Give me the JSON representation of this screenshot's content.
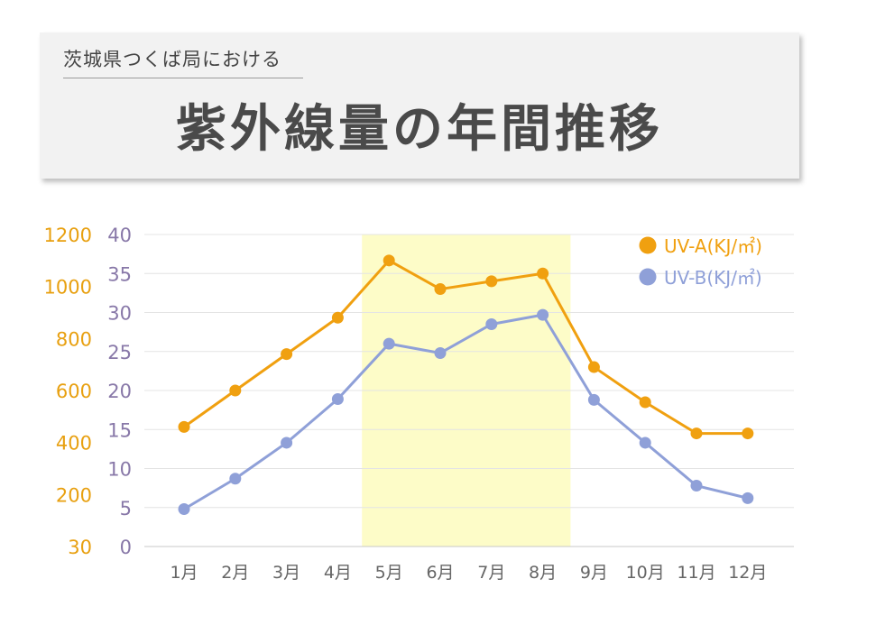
{
  "header": {
    "subtitle": "茨城県つくば局における",
    "title": "紫外線量の年間推移"
  },
  "colors": {
    "uva": "#f0a010",
    "uvb": "#8fa0d8",
    "axis_left": "#e8a010",
    "axis_right": "#8878a8",
    "highlight": "#fdfcc8"
  },
  "chart_data": {
    "type": "line",
    "categories": [
      "1月",
      "2月",
      "3月",
      "4月",
      "5月",
      "6月",
      "7月",
      "8月",
      "9月",
      "10月",
      "11月",
      "12月"
    ],
    "highlight_range": [
      "5月",
      "9月"
    ],
    "series": [
      {
        "name": "UV-A(KJ/㎡)",
        "axis": "left",
        "values": [
          460,
          600,
          740,
          880,
          1100,
          990,
          1020,
          1050,
          690,
          555,
          435,
          435
        ]
      },
      {
        "name": "UV-B(KJ/㎡)",
        "axis": "right",
        "values": [
          4.8,
          8.7,
          13.3,
          18.9,
          26,
          24.8,
          28.5,
          29.7,
          18.8,
          13.3,
          7.8,
          6.2
        ]
      }
    ],
    "left_axis": {
      "ticks": [
        "30",
        "200",
        "400",
        "600",
        "800",
        "1000",
        "1200"
      ]
    },
    "right_axis": {
      "ticks": [
        "0",
        "5",
        "10",
        "15",
        "20",
        "25",
        "30",
        "35",
        "40"
      ],
      "ylim": [
        0,
        40
      ]
    },
    "grid": true,
    "legend": "top-right"
  }
}
